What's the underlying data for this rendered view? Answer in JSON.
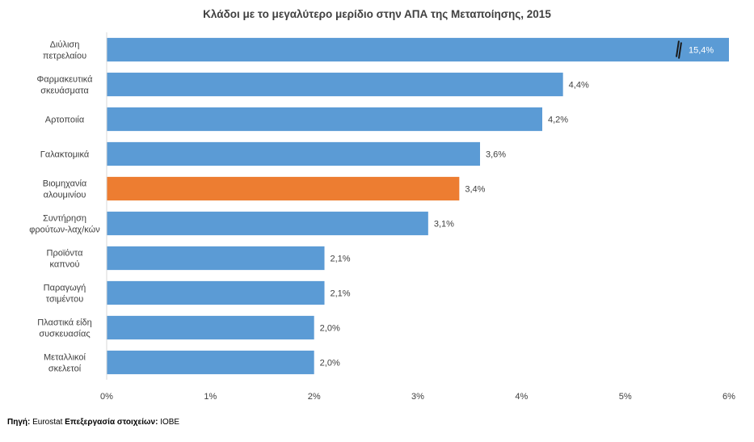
{
  "chart_data": {
    "type": "bar",
    "orientation": "horizontal",
    "title": "Κλάδοι με το μεγαλύτερο μερίδιο στην ΑΠΑ της Μεταποίησης, 2015",
    "categories": [
      "Διύλιση\nπετρελαίου",
      "Φαρμακευτικά\nσκευάσματα",
      "Αρτοποιία",
      "Γαλακτομικά",
      "Βιομηχανία\nαλουμινίου",
      "Συντήρηση\nφρούτων-λαχ/κών",
      "Προϊόντα\nκαπνού",
      "Παραγωγή\nτσιμέντου",
      "Πλαστικά είδη\nσυσκευασίας",
      "Μεταλλικοί\nσκελετοί"
    ],
    "values": [
      15.4,
      4.4,
      4.2,
      3.6,
      3.4,
      3.1,
      2.1,
      2.1,
      2.0,
      2.0
    ],
    "value_labels": [
      "15,4%",
      "4,4%",
      "4,2%",
      "3,6%",
      "3,4%",
      "3,1%",
      "2,1%",
      "2,1%",
      "2,0%",
      "2,0%"
    ],
    "highlight_category": "Βιομηχανία\nαλουμινίου",
    "xlim": [
      0,
      6
    ],
    "xticks": [
      0,
      1,
      2,
      3,
      4,
      5,
      6
    ],
    "xtick_labels": [
      "0%",
      "1%",
      "2%",
      "3%",
      "4%",
      "5%",
      "6%"
    ],
    "axis_break_on": "Διύλιση\nπετρελαίου",
    "grid": false,
    "colors": {
      "bar": "#5B9BD5",
      "highlight": "#ED7D31",
      "text": "#404040",
      "axis": "#D9D9D9"
    }
  },
  "source": {
    "label": "Πηγή:",
    "value": "Eurostat",
    "processing_label": "Επεξεργασία στοιχείων:",
    "processing_value": "ΙΟΒΕ"
  }
}
